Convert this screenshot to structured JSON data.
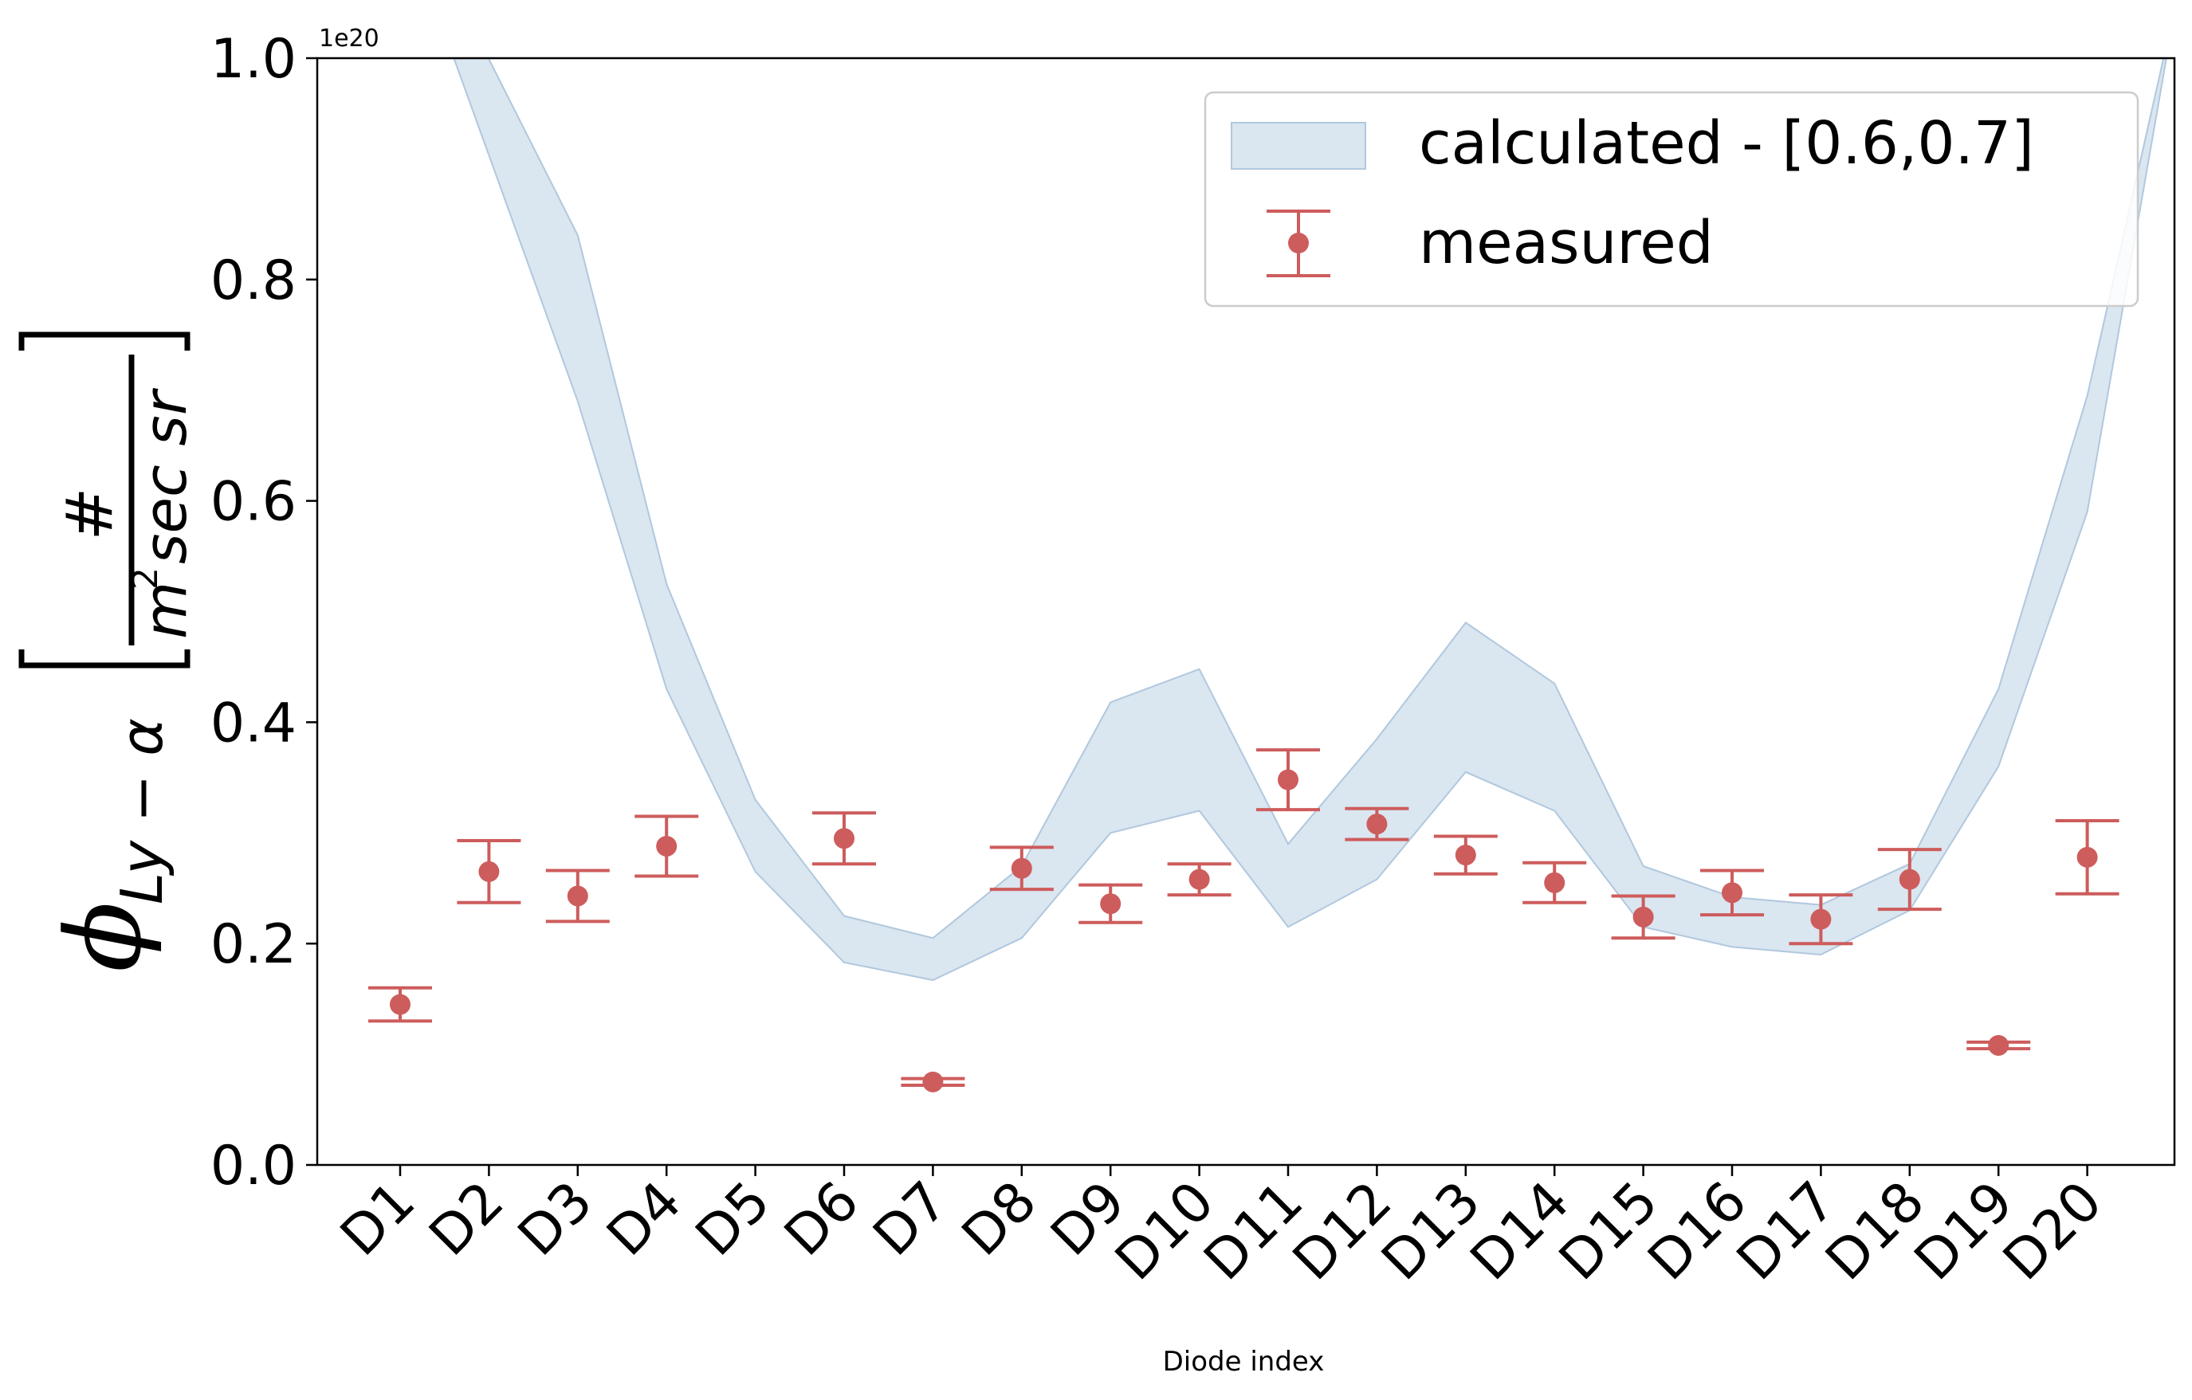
{
  "chart_data": {
    "type": "scatter",
    "xlabel": "Diode index",
    "scale_label": "1e20",
    "ylabel": {
      "base": "ϕ",
      "subscript": "Ly − α",
      "numerator": "#",
      "denominator_m": "m",
      "denominator_exp": "2",
      "denominator_rest": "sec sr"
    },
    "scale_factor": 1e+20,
    "ylim": [
      0.0,
      1.0
    ],
    "yticks": [
      "0.0",
      "0.2",
      "0.4",
      "0.6",
      "0.8",
      "1.0"
    ],
    "categories": [
      "D1",
      "D2",
      "D3",
      "D4",
      "D5",
      "D6",
      "D7",
      "D8",
      "D9",
      "D10",
      "D11",
      "D12",
      "D13",
      "D14",
      "D15",
      "D16",
      "D17",
      "D18",
      "D19",
      "D20"
    ],
    "legend_position": "top-right",
    "grid": false,
    "series": [
      {
        "name": "calculated - [0.6,0.7]",
        "kind": "band",
        "color": "#c6d8e8",
        "x_start": 2,
        "lower": [
          0.69,
          0.43,
          0.265,
          0.183,
          0.167,
          0.205,
          0.3,
          0.32,
          0.215,
          0.258,
          0.355,
          0.32,
          0.215,
          0.197,
          0.19,
          0.23,
          0.36,
          0.59,
          1.05
        ],
        "upper": [
          0.84,
          0.525,
          0.33,
          0.225,
          0.205,
          0.27,
          0.418,
          0.448,
          0.29,
          0.385,
          0.49,
          0.435,
          0.27,
          0.242,
          0.235,
          0.272,
          0.43,
          0.695,
          1.05
        ]
      },
      {
        "name": "measured",
        "kind": "errorbar",
        "color": "#cd5c5c",
        "values": [
          0.145,
          0.265,
          0.243,
          0.288,
          null,
          0.295,
          0.075,
          0.268,
          0.236,
          0.258,
          0.348,
          0.308,
          0.28,
          0.255,
          0.224,
          0.246,
          0.222,
          0.258,
          0.108,
          0.278
        ],
        "err_low": [
          0.015,
          0.028,
          0.023,
          0.027,
          null,
          0.023,
          0.003,
          0.019,
          0.017,
          0.014,
          0.027,
          0.014,
          0.017,
          0.018,
          0.019,
          0.02,
          0.022,
          0.027,
          0.003,
          0.033
        ],
        "err_high": [
          0.015,
          0.028,
          0.023,
          0.027,
          null,
          0.023,
          0.003,
          0.019,
          0.017,
          0.014,
          0.027,
          0.014,
          0.017,
          0.018,
          0.019,
          0.02,
          0.022,
          0.027,
          0.003,
          0.033
        ]
      }
    ]
  }
}
